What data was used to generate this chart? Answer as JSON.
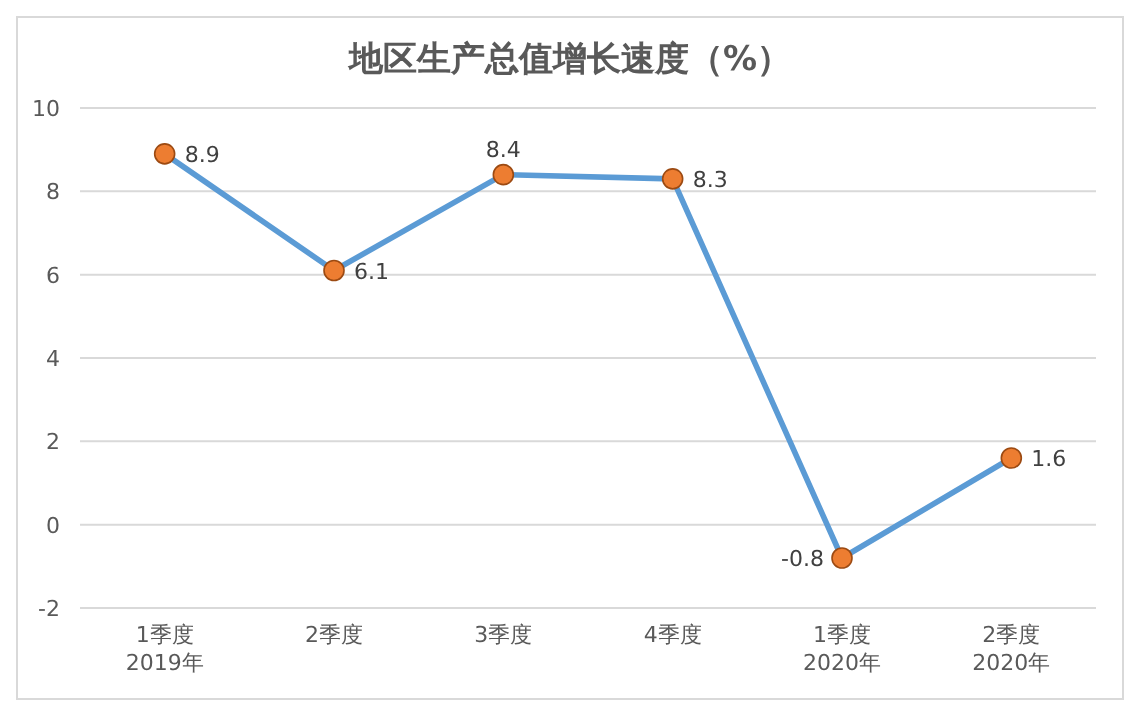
{
  "chart_data": {
    "type": "line",
    "title": "地区生产总值增长速度（%）",
    "categories": [
      "1季度\n2019年",
      "2季度",
      "3季度",
      "4季度",
      "1季度\n2020年",
      "2季度\n2020年"
    ],
    "series": [
      {
        "color": "#5b9bd5",
        "values": [
          8.9,
          6.1,
          8.4,
          8.3,
          -0.8,
          1.6
        ]
      }
    ],
    "marker": "circle",
    "data_labels": true,
    "grid": "y",
    "ylim": [
      -2,
      10
    ],
    "yticks": [
      -2,
      0,
      2,
      4,
      6,
      8,
      10
    ]
  }
}
